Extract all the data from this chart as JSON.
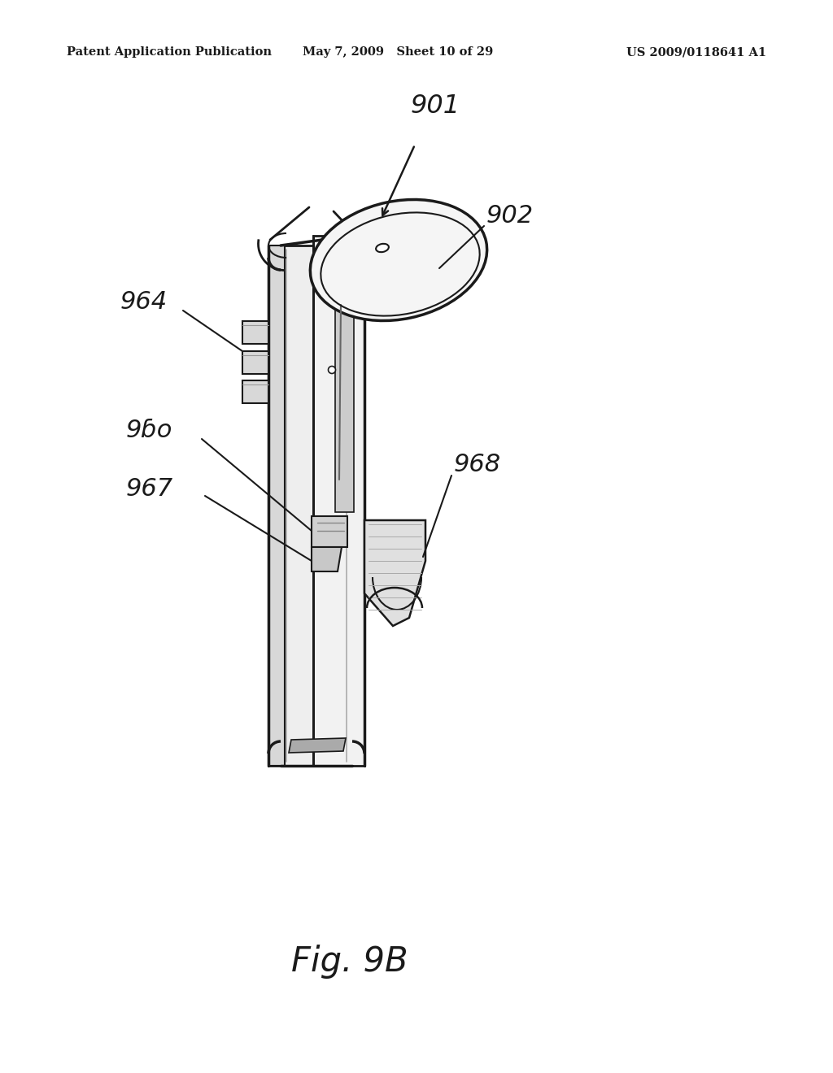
{
  "header_left": "Patent Application Publication",
  "header_center": "May 7, 2009   Sheet 10 of 29",
  "header_right": "US 2009/0118641 A1",
  "figure_label": "Fig. 9B",
  "bg_color": "#ffffff",
  "line_color": "#1a1a1a",
  "body_fill": "#f0f0f0",
  "body_fill2": "#e0e0e0",
  "cap_fill": "#e8e8e8",
  "dark_fill": "#c0c0c0",
  "mid_fill": "#d5d5d5"
}
